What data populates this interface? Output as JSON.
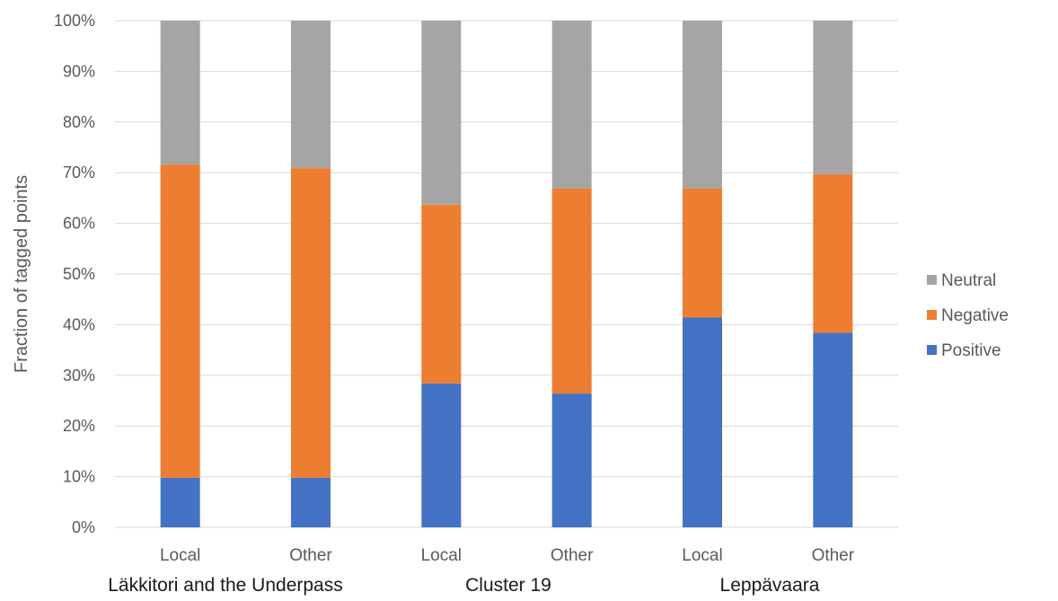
{
  "chart_data": {
    "type": "bar",
    "stacked": true,
    "percent_stacked": true,
    "ylabel": "Fraction of tagged points",
    "xlabel": "",
    "ylim": [
      0,
      100
    ],
    "yticks": [
      "0%",
      "10%",
      "20%",
      "30%",
      "40%",
      "50%",
      "60%",
      "70%",
      "80%",
      "90%",
      "100%"
    ],
    "categories": [
      "Local",
      "Other",
      "Local",
      "Other",
      "Local",
      "Other"
    ],
    "groups": [
      {
        "label": "Läkkitori and the Underpass",
        "categories": [
          0,
          1
        ]
      },
      {
        "label": "Cluster 19",
        "categories": [
          2,
          3
        ]
      },
      {
        "label": "Leppävaara",
        "categories": [
          4,
          5
        ]
      }
    ],
    "series": [
      {
        "name": "Positive",
        "color": "#4472C4",
        "values": [
          9.8,
          9.8,
          28.4,
          26.4,
          41.4,
          38.4
        ]
      },
      {
        "name": "Negative",
        "color": "#ED7D31",
        "values": [
          61.8,
          61.1,
          35.3,
          40.5,
          25.5,
          31.3
        ]
      },
      {
        "name": "Neutral",
        "color": "#A5A5A5",
        "values": [
          28.4,
          29.1,
          36.3,
          33.1,
          33.1,
          30.3
        ]
      }
    ],
    "legend": {
      "position": "right",
      "order": [
        "Neutral",
        "Negative",
        "Positive"
      ]
    },
    "grid": true,
    "gridColor": "#D9D9D9"
  }
}
